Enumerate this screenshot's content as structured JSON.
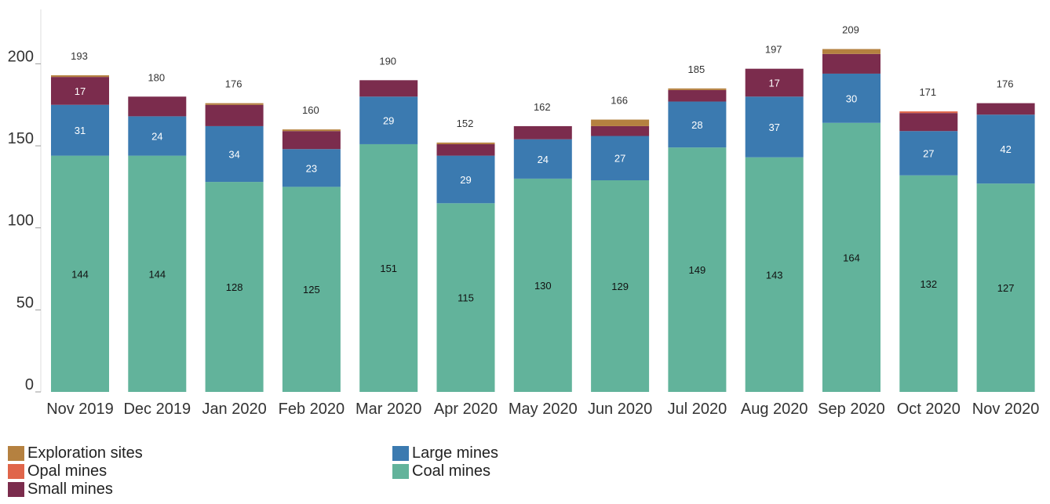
{
  "chart_data": {
    "type": "bar",
    "stacked": true,
    "categories": [
      "Nov 2019",
      "Dec 2019",
      "Jan 2020",
      "Feb 2020",
      "Mar 2020",
      "Apr 2020",
      "May 2020",
      "Jun 2020",
      "Jul 2020",
      "Aug 2020",
      "Sep 2020",
      "Oct 2020",
      "Nov 2020"
    ],
    "series": [
      {
        "name": "Coal mines",
        "color": "#62b39b",
        "values": [
          144,
          144,
          128,
          125,
          151,
          115,
          130,
          129,
          149,
          143,
          164,
          132,
          127
        ],
        "labels": [
          "144",
          "144",
          "128",
          "125",
          "151",
          "115",
          "130",
          "129",
          "149",
          "143",
          "164",
          "132",
          "127"
        ]
      },
      {
        "name": "Large mines",
        "color": "#3b7ab0",
        "values": [
          31,
          24,
          34,
          23,
          29,
          29,
          24,
          27,
          28,
          37,
          30,
          27,
          42
        ],
        "labels": [
          "31",
          "24",
          "34",
          "23",
          "29",
          "29",
          "24",
          "27",
          "28",
          "37",
          "30",
          "27",
          "42"
        ]
      },
      {
        "name": "Small mines",
        "color": "#7b2c4d",
        "values": [
          17,
          12,
          13,
          11,
          10,
          7,
          8,
          6,
          7,
          17,
          12,
          11,
          7
        ],
        "labels": [
          "17",
          "",
          "",
          "",
          "",
          "",
          "",
          "",
          "",
          "17",
          "",
          "",
          ""
        ]
      },
      {
        "name": "Opal mines",
        "color": "#e0654a",
        "values": [
          0,
          0,
          0,
          0,
          0,
          0,
          0,
          0,
          0,
          0,
          0,
          1,
          0
        ],
        "labels": [
          "",
          "",
          "",
          "",
          "",
          "",
          "",
          "",
          "",
          "",
          "",
          "",
          ""
        ]
      },
      {
        "name": "Exploration sites",
        "color": "#b58140",
        "values": [
          1,
          0,
          1,
          1,
          0,
          1,
          0,
          4,
          1,
          0,
          3,
          0,
          0
        ],
        "labels": [
          "",
          "",
          "",
          "",
          "",
          "",
          "",
          "",
          "",
          "",
          "",
          "",
          ""
        ]
      }
    ],
    "totals": [
      "193",
      "180",
      "176",
      "160",
      "190",
      "152",
      "162",
      "166",
      "185",
      "197",
      "209",
      "171",
      "176"
    ],
    "y_ticks": [
      "0",
      "50",
      "100",
      "150",
      "200"
    ],
    "ylim": [
      0,
      230
    ],
    "title": "",
    "xlabel": "",
    "ylabel": "",
    "grid": false,
    "legend_placement": "bottom-left",
    "legend": [
      {
        "name": "Exploration sites",
        "color": "#b58140"
      },
      {
        "name": "Opal mines",
        "color": "#e0654a"
      },
      {
        "name": "Small mines",
        "color": "#7b2c4d"
      },
      {
        "name": "Large mines",
        "color": "#3b7ab0"
      },
      {
        "name": "Coal mines",
        "color": "#62b39b"
      }
    ]
  }
}
